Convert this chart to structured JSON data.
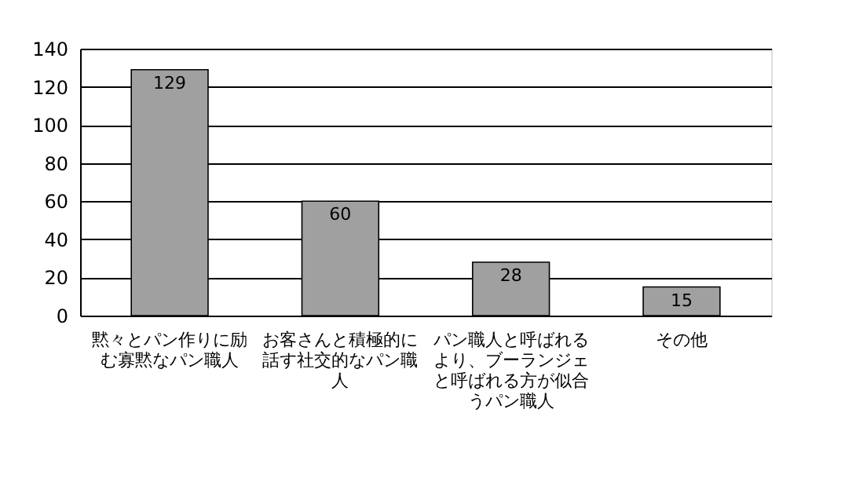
{
  "chart_data": {
    "type": "bar",
    "categories": [
      "黙々とパン作りに励む寡黙なパン職人",
      "お客さんと積極的に話す社交的なパン職人",
      "パン職人と呼ばれるより、ブーランジェと呼ばれる方が似合うパン職人",
      "その他"
    ],
    "values": [
      129,
      60,
      28,
      15
    ],
    "color": "#a0a0a0",
    "ylim": [
      0,
      140
    ],
    "yticks": [
      0,
      20,
      40,
      60,
      80,
      100,
      120,
      140
    ],
    "grid": "y",
    "data_labels": true
  }
}
